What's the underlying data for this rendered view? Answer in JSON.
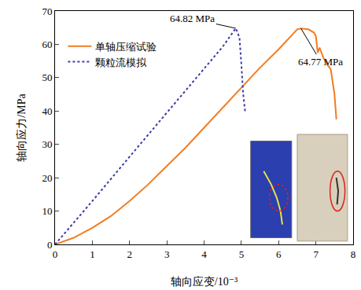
{
  "chart_data": {
    "type": "line",
    "x_label": "轴向应变/10⁻³",
    "y_label": "轴向应力/MPa",
    "xlim": [
      0,
      8
    ],
    "xticks": [
      0,
      1,
      2,
      3,
      4,
      5,
      6,
      7,
      8
    ],
    "ylim": [
      0,
      70
    ],
    "yticks": [
      0,
      10,
      20,
      30,
      40,
      50,
      60,
      70
    ],
    "grid": false,
    "legend": "upper left",
    "series": [
      {
        "name": "单轴压缩试验",
        "color": "#f47c20",
        "line_style": "solid",
        "x": [
          0,
          0.5,
          1,
          1.5,
          2,
          2.5,
          3,
          3.5,
          4,
          4.5,
          5,
          5.5,
          6,
          6.3,
          6.5,
          6.6,
          6.8,
          6.95,
          7.0,
          7.05,
          7.1,
          7.2,
          7.3,
          7.4,
          7.45,
          7.5,
          7.55
        ],
        "values": [
          0,
          2,
          5,
          8.5,
          13,
          18,
          23.5,
          29,
          35,
          41,
          47,
          53,
          58.5,
          62,
          64.5,
          64.77,
          64.5,
          63.5,
          62.5,
          57.5,
          59,
          56,
          54,
          52.5,
          49,
          45,
          37.5
        ]
      },
      {
        "name": "颗粒流模拟",
        "color": "#3a3aa8",
        "line_style": "dot",
        "x": [
          0,
          0.5,
          1,
          2,
          3,
          4,
          4.5,
          4.85,
          4.95,
          5.0,
          5.05,
          5.1
        ],
        "values": [
          0,
          6.5,
          13,
          26.3,
          39.5,
          52.8,
          59.3,
          64.82,
          62,
          54,
          45,
          40
        ]
      }
    ],
    "annotations": [
      {
        "text": "64.82 MPa",
        "x": 4.85,
        "y": 64.82
      },
      {
        "text": "64.77 MPa",
        "x": 6.6,
        "y": 64.77
      }
    ]
  }
}
